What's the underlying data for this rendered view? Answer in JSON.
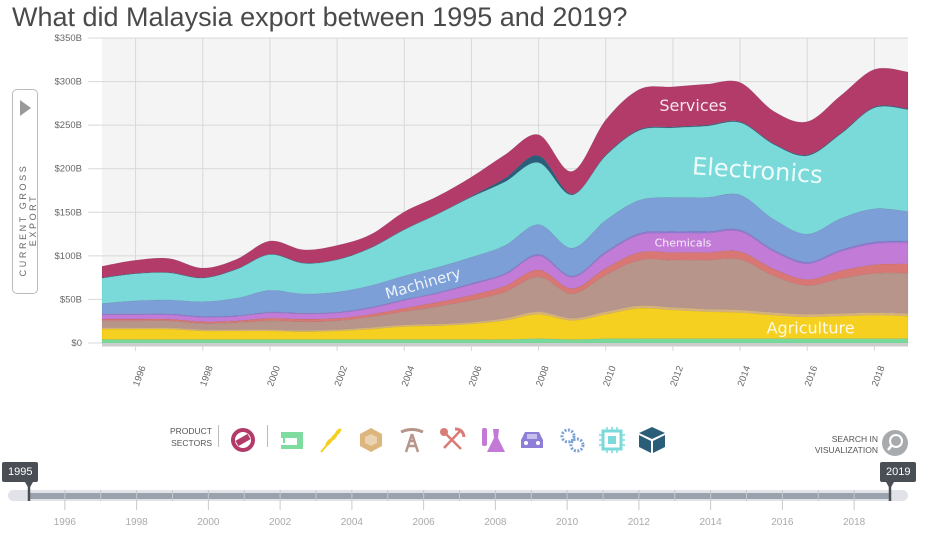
{
  "title": "What did Malaysia export between 1995 and 2019?",
  "y_axis_button": {
    "label": "CURRENT GROSS EXPORT",
    "icon": "play-triangle-icon"
  },
  "product_sectors": {
    "label_line1": "PRODUCT",
    "label_line2": "SECTORS",
    "icons": [
      {
        "icon": "services-handshake-icon",
        "color": "#b23b6a"
      },
      {
        "icon": "textiles-sewing-machine-icon",
        "color": "#7fdca0"
      },
      {
        "icon": "agriculture-wheat-icon",
        "color": "#f5ce1f"
      },
      {
        "icon": "stone-gem-icon",
        "color": "#dcb67c"
      },
      {
        "icon": "minerals-oil-derrick-icon",
        "color": "#b7958a"
      },
      {
        "icon": "metals-pick-shovel-icon",
        "color": "#d97b77"
      },
      {
        "icon": "chemicals-flask-icon",
        "color": "#c27ad6"
      },
      {
        "icon": "vehicles-car-icon",
        "color": "#8f7ed8"
      },
      {
        "icon": "machinery-gears-icon",
        "color": "#7aa2d8"
      },
      {
        "icon": "electronics-chip-icon",
        "color": "#7bdad9"
      },
      {
        "icon": "other-box-icon",
        "color": "#2a5d78"
      }
    ]
  },
  "search": {
    "line1": "SEARCH IN",
    "line2": "VISUALIZATION",
    "icon": "magnifier-icon"
  },
  "timeline": {
    "start": "1995",
    "end": "2019",
    "tick_labels": [
      "1996",
      "1998",
      "2000",
      "2002",
      "2004",
      "2006",
      "2008",
      "2010",
      "2012",
      "2014",
      "2016",
      "2018"
    ]
  },
  "chart_data": {
    "type": "area",
    "stacked": true,
    "title": "What did Malaysia export between 1995 and 2019?",
    "ylabel": "CURRENT GROSS EXPORT",
    "ylim": [
      0,
      350
    ],
    "yticks": [
      "$0",
      "$50B",
      "$100B",
      "$150B",
      "$200B",
      "$250B",
      "$300B",
      "$350B"
    ],
    "ytick_values": [
      0,
      50,
      100,
      150,
      200,
      250,
      300,
      350
    ],
    "x": [
      1995,
      1996,
      1997,
      1998,
      1999,
      2000,
      2001,
      2002,
      2003,
      2004,
      2005,
      2006,
      2007,
      2008,
      2009,
      2010,
      2011,
      2012,
      2013,
      2014,
      2015,
      2016,
      2017,
      2018,
      2019
    ],
    "xticks": [
      "1996",
      "1998",
      "2000",
      "2002",
      "2004",
      "2006",
      "2008",
      "2010",
      "2012",
      "2014",
      "2016",
      "2018"
    ],
    "grid": true,
    "units": "billion USD",
    "series": [
      {
        "color": "#79d99b",
        "values": [
          4,
          4,
          4,
          4,
          4,
          4,
          4,
          4,
          4,
          4,
          4,
          4,
          4,
          5,
          4,
          5,
          5,
          5,
          5,
          5,
          5,
          5,
          5,
          5,
          5
        ]
      },
      {
        "name": "Agriculture",
        "color": "#f6d020",
        "values": [
          12,
          12,
          12,
          10,
          10,
          10,
          9,
          10,
          12,
          15,
          16,
          18,
          22,
          28,
          22,
          28,
          35,
          33,
          31,
          30,
          27,
          25,
          26,
          27,
          26
        ]
      },
      {
        "color": "#d7b37a",
        "values": [
          1.5,
          1.5,
          1.5,
          1.5,
          1.5,
          1.5,
          1.5,
          1.5,
          2,
          2,
          2,
          2,
          2.5,
          3,
          2.5,
          3,
          3,
          3,
          3,
          3,
          3,
          3,
          3,
          3,
          3
        ]
      },
      {
        "color": "#b8958a",
        "values": [
          8,
          8,
          8,
          7,
          8,
          10,
          10,
          10,
          12,
          15,
          20,
          25,
          30,
          40,
          28,
          42,
          52,
          54,
          56,
          58,
          42,
          33,
          40,
          45,
          46
        ]
      },
      {
        "color": "#d87774",
        "values": [
          2,
          2,
          2,
          2,
          2,
          3,
          3,
          3,
          3,
          4,
          5,
          6,
          7,
          8,
          6,
          8,
          9,
          9,
          9,
          9,
          8,
          7,
          9,
          10,
          11
        ]
      },
      {
        "name": "Chemicals",
        "color": "#c27bd7",
        "values": [
          5,
          5,
          5,
          5,
          5,
          6,
          6,
          6,
          7,
          9,
          10,
          12,
          13,
          16,
          13,
          17,
          20,
          22,
          22,
          23,
          20,
          18,
          22,
          24,
          24
        ]
      },
      {
        "color": "#8d7ad6",
        "values": [
          1,
          1,
          1,
          1,
          1,
          1,
          1,
          1,
          1,
          1,
          1,
          1.5,
          1.5,
          2,
          1.5,
          2,
          2,
          2,
          2,
          2,
          2,
          2,
          2,
          2,
          2
        ]
      },
      {
        "name": "Machinery",
        "color": "#7b9fd6",
        "values": [
          12,
          15,
          16,
          17,
          20,
          25,
          22,
          23,
          25,
          27,
          29,
          30,
          32,
          34,
          32,
          36,
          38,
          39,
          39,
          40,
          35,
          32,
          36,
          38,
          34
        ]
      },
      {
        "name": "Electronics",
        "color": "#7adada",
        "values": [
          29,
          31,
          31,
          27,
          33,
          41,
          35,
          37,
          43,
          53,
          61,
          69,
          73,
          71,
          61,
          74,
          80,
          80,
          82,
          83,
          86,
          90,
          97,
          116,
          117
        ]
      },
      {
        "color": "#2a5f7c",
        "values": [
          0.5,
          0.5,
          0.5,
          0.5,
          0.5,
          0.5,
          0.5,
          0.5,
          0.5,
          0.5,
          0.5,
          1,
          4,
          8,
          1,
          1,
          1,
          1,
          1,
          1,
          1,
          1,
          1,
          1,
          1
        ]
      },
      {
        "name": "Services",
        "color": "#b23b69",
        "values": [
          13,
          15,
          16,
          11,
          11,
          15,
          15,
          16,
          15,
          20,
          20,
          22,
          27,
          24,
          26,
          40,
          46,
          46,
          47,
          45,
          37,
          38,
          43,
          43,
          42
        ]
      }
    ]
  }
}
